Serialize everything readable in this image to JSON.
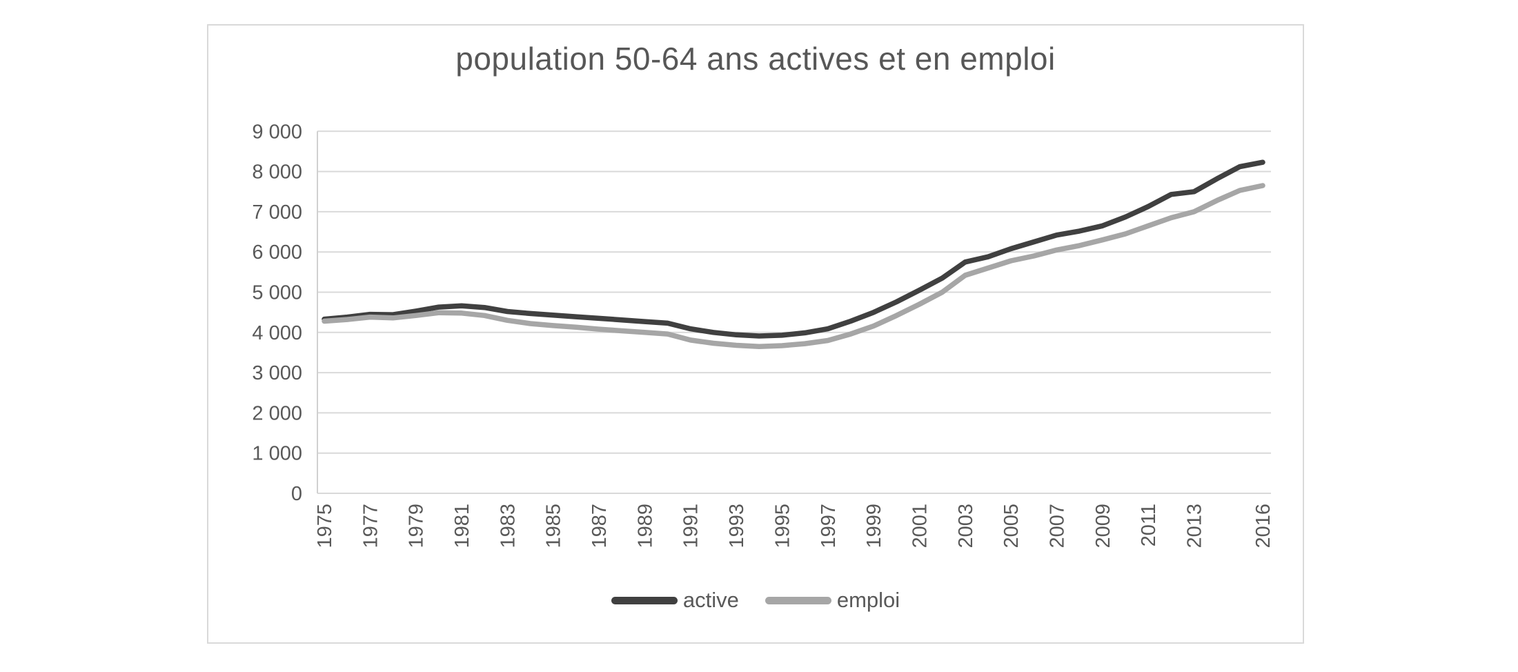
{
  "chart_data": {
    "type": "line",
    "title": "population 50-64 ans actives et en emploi",
    "xlabel": "",
    "ylabel": "",
    "ylim": [
      0,
      9000
    ],
    "grid": "horizontal",
    "legend_position": "bottom",
    "colors": {
      "gridline": "#d9d9d9",
      "axis": "#d0d0d0",
      "tick_text": "#595959",
      "title_text": "#575757"
    },
    "x": [
      1975,
      1976,
      1977,
      1978,
      1979,
      1980,
      1981,
      1982,
      1983,
      1984,
      1985,
      1986,
      1987,
      1988,
      1989,
      1990,
      1991,
      1992,
      1993,
      1994,
      1995,
      1996,
      1997,
      1998,
      1999,
      2000,
      2001,
      2002,
      2003,
      2004,
      2005,
      2006,
      2007,
      2008,
      2009,
      2010,
      2011,
      2012,
      2013,
      2014,
      2015,
      2016
    ],
    "x_tick_labels": [
      "1975",
      "1977",
      "1979",
      "1981",
      "1983",
      "1985",
      "1987",
      "1989",
      "1991",
      "1993",
      "1995",
      "1997",
      "1999",
      "2001",
      "2003",
      "2005",
      "2007",
      "2009",
      "2011",
      "2013",
      "2016"
    ],
    "y_tick_labels": [
      "0",
      "1 000",
      "2 000",
      "3 000",
      "4 000",
      "5 000",
      "6 000",
      "7 000",
      "8 000",
      "9 000"
    ],
    "series": [
      {
        "name": "active",
        "color": "#404040",
        "values": [
          4330,
          4380,
          4450,
          4440,
          4530,
          4630,
          4660,
          4620,
          4520,
          4470,
          4430,
          4390,
          4350,
          4310,
          4270,
          4230,
          4090,
          4000,
          3940,
          3910,
          3930,
          3990,
          4090,
          4280,
          4500,
          4760,
          5050,
          5350,
          5750,
          5880,
          6080,
          6250,
          6420,
          6520,
          6650,
          6870,
          7130,
          7430,
          7500,
          7820,
          8120,
          8230
        ]
      },
      {
        "name": "emploi",
        "color": "#a6a6a6",
        "values": [
          4280,
          4320,
          4380,
          4360,
          4420,
          4490,
          4480,
          4420,
          4300,
          4220,
          4170,
          4130,
          4080,
          4040,
          4000,
          3960,
          3810,
          3730,
          3680,
          3650,
          3670,
          3720,
          3800,
          3960,
          4160,
          4420,
          4700,
          5000,
          5420,
          5600,
          5780,
          5900,
          6050,
          6160,
          6300,
          6450,
          6650,
          6850,
          7000,
          7280,
          7530,
          7650
        ]
      }
    ]
  }
}
